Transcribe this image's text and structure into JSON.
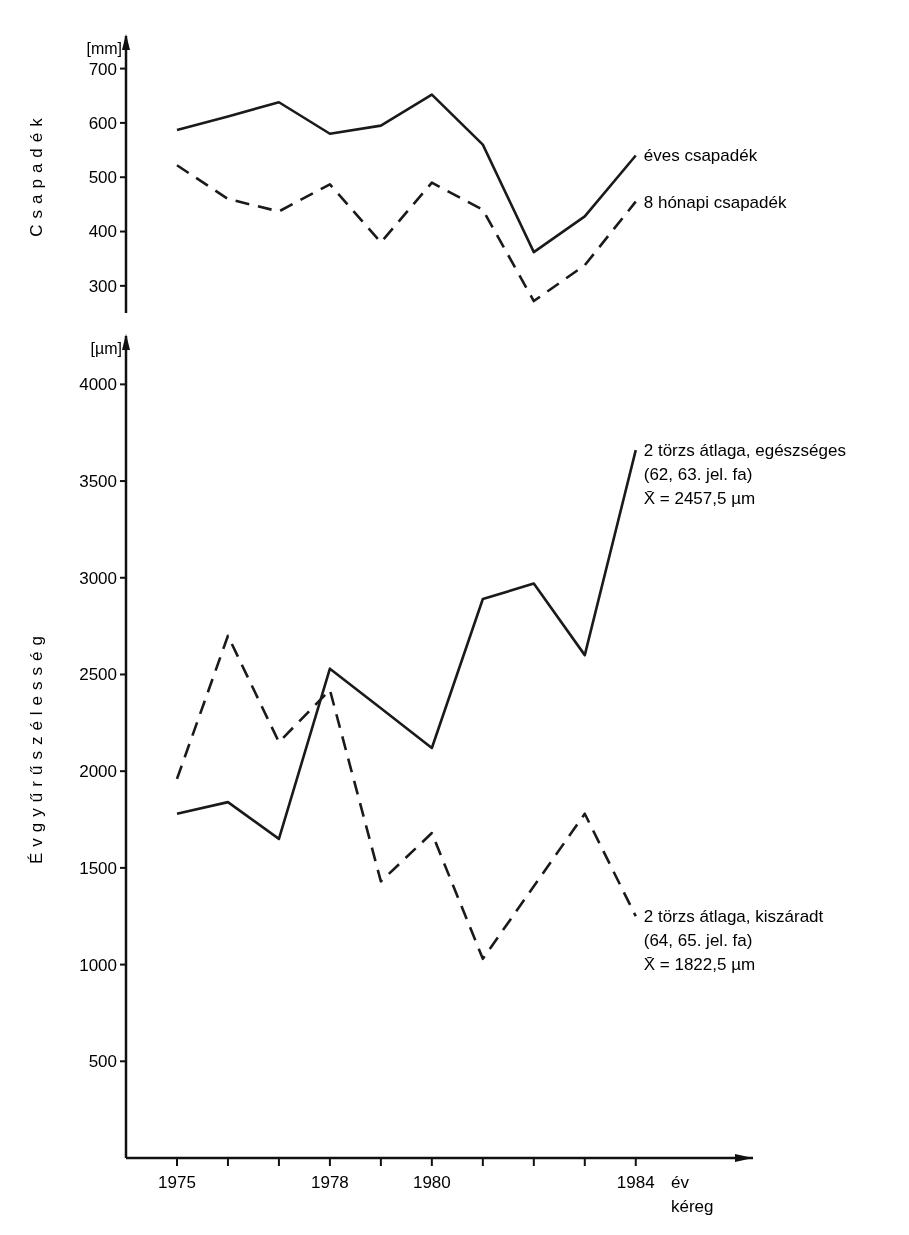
{
  "chart_data": [
    {
      "type": "line",
      "ylabel": "Csapadék",
      "annotations": [
        "[mm]"
      ],
      "x": [
        1975,
        1976,
        1977,
        1978,
        1979,
        1980,
        1981,
        1982,
        1983,
        1984
      ],
      "ylim": [
        250,
        760
      ],
      "yticks": [
        300,
        400,
        500,
        600,
        700
      ],
      "tick_labels": "y",
      "series": [
        {
          "name": "éves csapadék",
          "color": "#1a1a1a",
          "line_style": "solid",
          "values": [
            587,
            612,
            638,
            580,
            595,
            652,
            560,
            362,
            428,
            540
          ]
        },
        {
          "name": "8 hónapi csapadék",
          "color": "#1a1a1a",
          "line_style": "dashed",
          "values": [
            522,
            460,
            437,
            487,
            380,
            490,
            440,
            272,
            338,
            455
          ]
        }
      ]
    },
    {
      "type": "line",
      "ylabel": "Évgyűrűszélesség",
      "xlabel": "év",
      "annotations": [
        "[µm]",
        "kéreg"
      ],
      "x": [
        1975,
        1976,
        1977,
        1978,
        1979,
        1980,
        1981,
        1982,
        1983,
        1984
      ],
      "xlim": [
        1974,
        1986.3
      ],
      "ylim": [
        0,
        4250
      ],
      "yticks": [
        500,
        1000,
        1500,
        2000,
        2500,
        3000,
        3500,
        4000
      ],
      "xticks": [
        1975,
        {
          "value": 1976,
          "label": null
        },
        {
          "value": 1977,
          "label": null
        },
        1978,
        {
          "value": 1979,
          "label": null
        },
        1980,
        {
          "value": 1981,
          "label": null
        },
        {
          "value": 1982,
          "label": null
        },
        {
          "value": 1983,
          "label": null
        },
        1984
      ],
      "series": [
        {
          "name": "2 törzs átlaga, egészséges\n(62, 63. jel. fa)\nX̄ = 2457,5 µm",
          "color": "#1a1a1a",
          "line_style": "solid",
          "values": [
            1780,
            1840,
            1650,
            2530,
            2325,
            2120,
            2890,
            2970,
            2600,
            3660
          ]
        },
        {
          "name": "2 törzs átlaga, kiszáradt\n(64, 65. jel. fa)\nX̄ = 1822,5 µm",
          "color": "#1a1a1a",
          "line_style": "dashed",
          "values": [
            1960,
            2700,
            2150,
            2420,
            1430,
            1680,
            1030,
            1405,
            1780,
            1250
          ]
        }
      ]
    }
  ]
}
